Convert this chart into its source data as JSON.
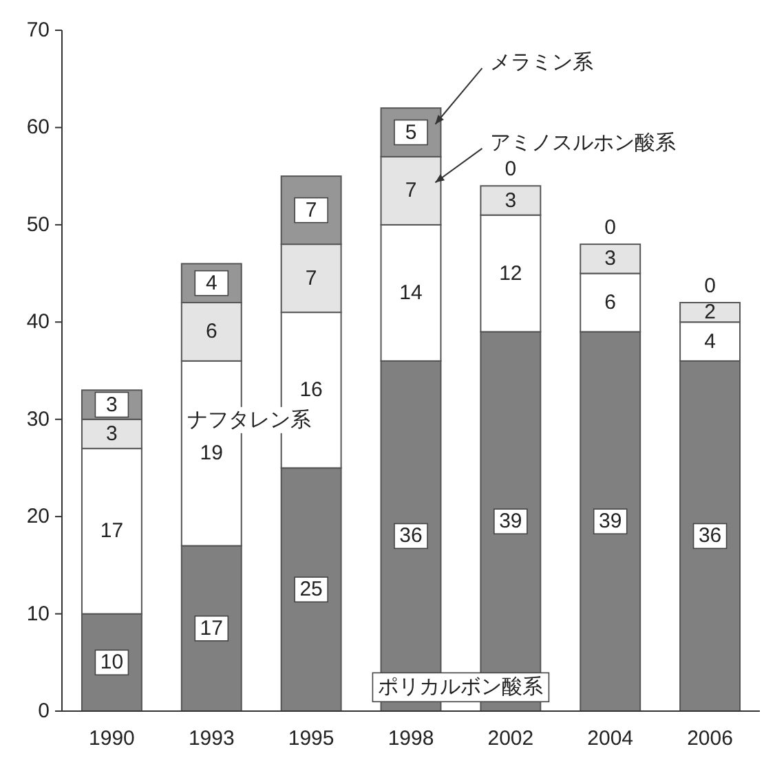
{
  "chart_data": {
    "type": "bar",
    "stacked": true,
    "categories": [
      "1990",
      "1993",
      "1995",
      "1998",
      "2002",
      "2004",
      "2006"
    ],
    "series": [
      {
        "name": "ポリカルボン酸系",
        "color": "#808080",
        "values": [
          10,
          17,
          25,
          36,
          39,
          39,
          36
        ]
      },
      {
        "name": "ナフタレン系",
        "color": "#ffffff",
        "values": [
          17,
          19,
          16,
          14,
          12,
          6,
          4
        ]
      },
      {
        "name": "アミノスルホン酸系",
        "color": "#e4e4e4",
        "values": [
          3,
          6,
          7,
          7,
          3,
          3,
          2
        ]
      },
      {
        "name": "メラミン系",
        "color": "#969696",
        "values": [
          3,
          4,
          7,
          5,
          0,
          0,
          0
        ]
      }
    ],
    "ylim": [
      0,
      70
    ],
    "yticks": [
      0,
      10,
      20,
      30,
      40,
      50,
      60,
      70
    ],
    "grid": false,
    "data_labels": true
  }
}
